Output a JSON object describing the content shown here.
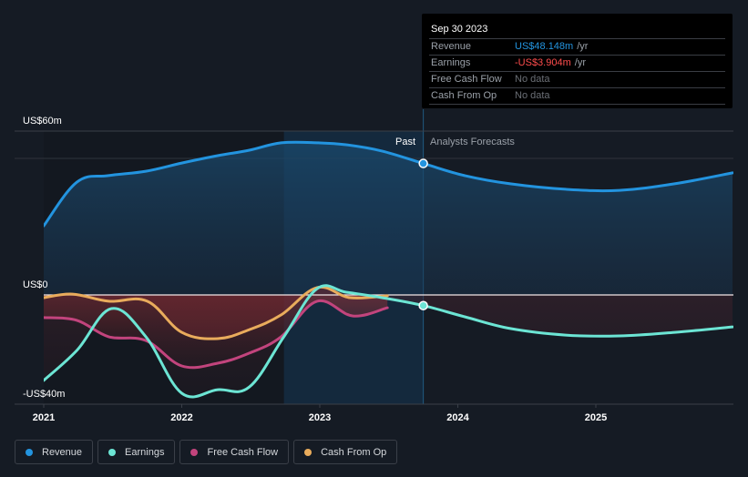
{
  "tooltip": {
    "date": "Sep 30 2023",
    "rows": [
      {
        "label": "Revenue",
        "value": "US$48.148m",
        "unit": "/yr",
        "color": "#2394df"
      },
      {
        "label": "Earnings",
        "value": "-US$3.904m",
        "unit": "/yr",
        "color": "#ff4d4d"
      },
      {
        "label": "Free Cash Flow",
        "value": "No data",
        "unit": "",
        "color": "#6b6f76"
      },
      {
        "label": "Cash From Op",
        "value": "No data",
        "unit": "",
        "color": "#6b6f76"
      }
    ]
  },
  "period_labels": {
    "past": "Past",
    "forecast": "Analysts Forecasts"
  },
  "legend": [
    {
      "label": "Revenue",
      "color": "#2394df"
    },
    {
      "label": "Earnings",
      "color": "#6ce5d4"
    },
    {
      "label": "Free Cash Flow",
      "color": "#c2447d"
    },
    {
      "label": "Cash From Op",
      "color": "#e9ac5c"
    }
  ],
  "chart_data": {
    "type": "line",
    "title": "",
    "xlabel": "",
    "ylabel": "",
    "x_ticks": [
      "2021",
      "2022",
      "2023",
      "2024",
      "2025"
    ],
    "y_labels": [
      "US$60m",
      "US$0",
      "-US$40m"
    ],
    "ylim": [
      -40,
      60
    ],
    "xlim": [
      2021.0,
      2025.99
    ],
    "past_forecast_split": 2023.75,
    "highlight_range": [
      2022.74,
      2023.75
    ],
    "series": [
      {
        "name": "Revenue",
        "color": "#2394df",
        "fill": true,
        "x": [
          2021.0,
          2021.24,
          2021.47,
          2021.74,
          2022.0,
          2022.26,
          2022.49,
          2022.72,
          2022.99,
          2023.19,
          2023.45,
          2023.75,
          2024.05,
          2024.38,
          2024.78,
          2025.17,
          2025.57,
          2025.99
        ],
        "values": [
          25.3,
          41.3,
          43.7,
          45.3,
          48.3,
          51.0,
          53.0,
          55.7,
          55.7,
          55.0,
          52.7,
          48.15,
          43.7,
          40.7,
          38.7,
          38.3,
          40.7,
          44.7
        ]
      },
      {
        "name": "Earnings",
        "color": "#6ce5d4",
        "fill": false,
        "x": [
          2021.0,
          2021.24,
          2021.49,
          2021.74,
          2022.0,
          2022.26,
          2022.49,
          2022.74,
          2022.98,
          2023.19,
          2023.45,
          2023.75,
          2024.05,
          2024.38,
          2024.78,
          2025.17,
          2025.57,
          2025.99
        ],
        "values": [
          -31.3,
          -20.3,
          -5.0,
          -15.3,
          -36.0,
          -34.7,
          -33.7,
          -15.3,
          2.3,
          1.0,
          -1.0,
          -3.9,
          -8.0,
          -12.3,
          -14.7,
          -15.0,
          -13.7,
          -11.7
        ]
      },
      {
        "name": "Free Cash Flow",
        "color": "#c2447d",
        "fill": false,
        "x": [
          2021.0,
          2021.24,
          2021.47,
          2021.74,
          2022.0,
          2022.26,
          2022.49,
          2022.72,
          2022.98,
          2023.24,
          2023.49
        ],
        "values": [
          -8.3,
          -9.3,
          -15.3,
          -16.7,
          -26.0,
          -25.0,
          -21.3,
          -15.3,
          -2.3,
          -7.7,
          -4.7
        ]
      },
      {
        "name": "Cash From Op",
        "color": "#e9ac5c",
        "fill": false,
        "x": [
          2021.0,
          2021.21,
          2021.47,
          2021.75,
          2022.0,
          2022.26,
          2022.49,
          2022.72,
          2022.98,
          2023.22,
          2023.49
        ],
        "values": [
          -1.0,
          0.3,
          -2.3,
          -2.3,
          -13.7,
          -16.0,
          -12.7,
          -7.3,
          2.7,
          -1.0,
          -0.3
        ]
      }
    ],
    "markers": [
      {
        "series": "Revenue",
        "x": 2023.75,
        "value": 48.15
      },
      {
        "series": "Earnings",
        "x": 2023.75,
        "value": -3.9
      }
    ],
    "legend_position": "bottom-left",
    "grid": true
  }
}
